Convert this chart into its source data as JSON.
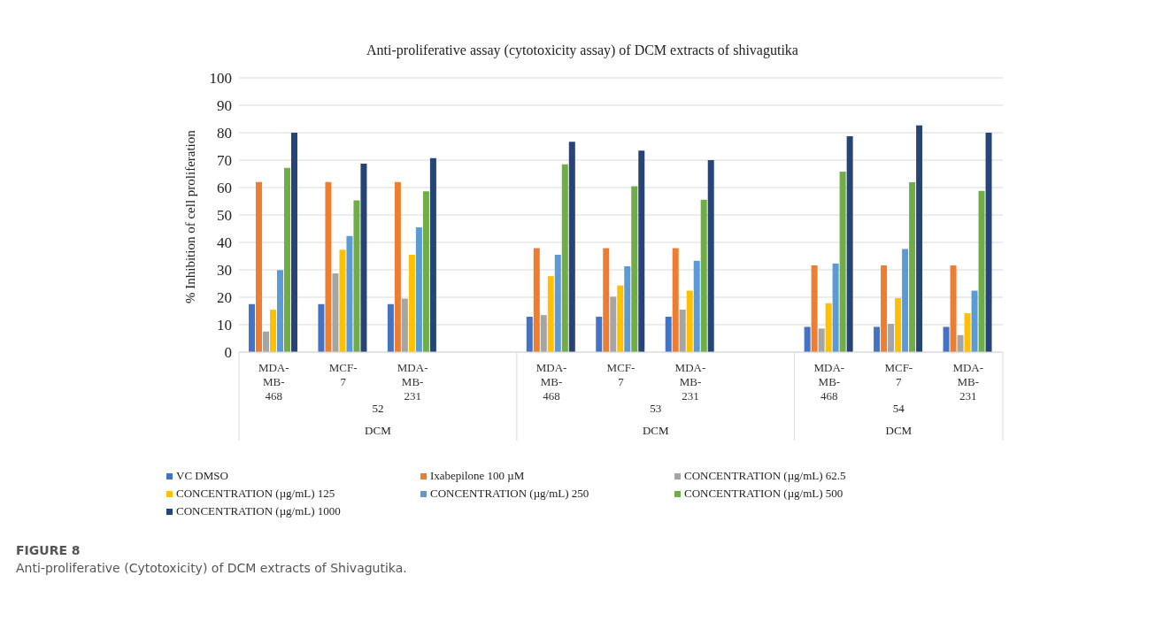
{
  "chart_data": {
    "type": "bar",
    "title": "Anti-proliferative assay (cytotoxicity assay) of DCM extracts of shivagutika",
    "ylabel": "% Inhibition of cell proliferation",
    "categories": [
      "MDA-MB-468",
      "MCF-7",
      "MDA-MB-231",
      null,
      "MDA-MB-468",
      "MCF-7",
      "MDA-MB-231",
      null,
      "MDA-MB-468",
      "MCF-7",
      "MDA-MB-231"
    ],
    "series": [
      {
        "name": "VC DMSO",
        "color": "#4472c4",
        "values": [
          17.5,
          17.5,
          17.5,
          null,
          12.9,
          12.9,
          12.9,
          null,
          9.2,
          9.2,
          9.2
        ]
      },
      {
        "name": "Ixabepilone 100 µM",
        "color": "#ed7d31",
        "values": [
          62,
          62,
          62,
          null,
          37.9,
          37.9,
          37.9,
          null,
          31.6,
          31.6,
          31.6
        ]
      },
      {
        "name": "CONCENTRATION (µg/mL) 62.5",
        "color": "#a5a5a5",
        "values": [
          7.5,
          28.7,
          19.5,
          null,
          13.5,
          20.2,
          15.5,
          null,
          8.6,
          10.3,
          6.2
        ]
      },
      {
        "name": "CONCENTRATION (µg/mL) 125",
        "color": "#ffc000",
        "values": [
          15.5,
          37.3,
          35.5,
          null,
          27.7,
          24.3,
          22.4,
          null,
          17.8,
          19.7,
          14.2
        ]
      },
      {
        "name": "CONCENTRATION (µg/mL) 250",
        "color": "#5b9bd5",
        "values": [
          29.9,
          42.3,
          45.5,
          null,
          35.5,
          31.3,
          33.3,
          null,
          32.3,
          37.6,
          22.4
        ]
      },
      {
        "name": "CONCENTRATION (µg/mL) 500",
        "color": "#70ad47",
        "values": [
          67.2,
          55.3,
          58.6,
          null,
          68.5,
          60.5,
          55.6,
          null,
          65.8,
          61.9,
          58.8
        ]
      },
      {
        "name": "CONCENTRATION (µg/mL) 1000",
        "color": "#264478",
        "values": [
          80,
          68.7,
          70.7,
          null,
          76.7,
          73.5,
          70,
          null,
          78.7,
          82.7,
          80
        ]
      }
    ],
    "ylim": [
      0,
      100
    ],
    "yticks": [
      0,
      10,
      20,
      30,
      40,
      50,
      60,
      70,
      80,
      90,
      100
    ],
    "grid": "y",
    "legend": "bottom",
    "annotations": [
      "52",
      "DCM",
      "53",
      "DCM",
      "54",
      "DCM",
      "FIGURE 8",
      "Anti-proliferative (Cytotoxicity) of DCM extracts of Shivagutika."
    ]
  }
}
